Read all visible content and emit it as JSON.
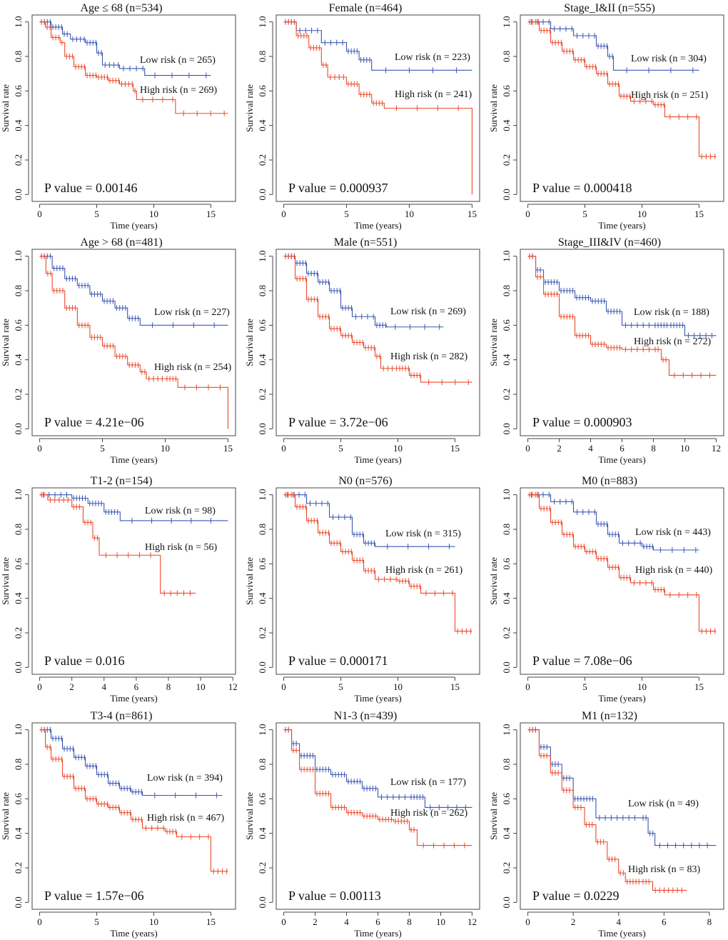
{
  "colors": {
    "low_risk": "#3b57b3",
    "high_risk": "#ec4a2c"
  },
  "chart_data": [
    {
      "type": "line",
      "title": "Age ≤ 68 (n=534)",
      "xlabel": "Time (years)",
      "ylabel": "Survival rate",
      "xlim": [
        0,
        16.5
      ],
      "ylim": [
        0,
        1
      ],
      "xticks": [
        0,
        5,
        10,
        15
      ],
      "yticks": [
        "0.0",
        "0.2",
        "0.4",
        "0.6",
        "0.8",
        "1.0"
      ],
      "p_value": "P value = 0.00146",
      "series": [
        {
          "name": "Low risk (n = 265)",
          "x": [
            0,
            1,
            2,
            2.7,
            4,
            5,
            5.5,
            7,
            9.2,
            15
          ],
          "y": [
            1,
            0.97,
            0.93,
            0.9,
            0.88,
            0.82,
            0.75,
            0.73,
            0.69,
            0.69
          ]
        },
        {
          "name": "High risk (n = 269)",
          "x": [
            0,
            0.5,
            1,
            1.8,
            2.2,
            3,
            4,
            5,
            6,
            7,
            8.2,
            8.5,
            11.9,
            16.5
          ],
          "y": [
            1,
            0.97,
            0.91,
            0.88,
            0.8,
            0.74,
            0.69,
            0.68,
            0.66,
            0.64,
            0.6,
            0.55,
            0.47,
            0.47
          ]
        }
      ]
    },
    {
      "type": "line",
      "title": "Female (n=464)",
      "xlabel": "Time (years)",
      "ylabel": "Survival rate",
      "xlim": [
        0,
        15
      ],
      "ylim": [
        0,
        1
      ],
      "xticks": [
        0,
        5,
        10,
        15
      ],
      "yticks": [
        "0.0",
        "0.2",
        "0.4",
        "0.6",
        "0.8",
        "1.0"
      ],
      "p_value": "P value = 0.000937",
      "series": [
        {
          "name": "Low risk (n = 223)",
          "x": [
            0,
            1,
            3,
            5,
            6,
            7,
            15
          ],
          "y": [
            1,
            0.95,
            0.88,
            0.83,
            0.78,
            0.72,
            0.72
          ]
        },
        {
          "name": "High risk (n = 241)",
          "x": [
            0,
            1,
            2,
            3,
            3.5,
            5,
            6,
            7,
            8,
            15,
            15
          ],
          "y": [
            1,
            0.92,
            0.85,
            0.75,
            0.68,
            0.64,
            0.58,
            0.53,
            0.5,
            0.5,
            0
          ]
        }
      ]
    },
    {
      "type": "line",
      "title": "Stage_I&II (n=555)",
      "xlabel": "Time (years)",
      "ylabel": "Survival rate",
      "xlim": [
        0,
        16.5
      ],
      "ylim": [
        0,
        1
      ],
      "xticks": [
        0,
        5,
        10,
        15
      ],
      "yticks": [
        "0.0",
        "0.2",
        "0.4",
        "0.6",
        "0.8",
        "1.0"
      ],
      "p_value": "P value = 0.000418",
      "series": [
        {
          "name": "Low risk (n = 304)",
          "x": [
            0,
            2,
            4,
            6,
            7,
            7.5,
            15
          ],
          "y": [
            1,
            0.96,
            0.92,
            0.86,
            0.8,
            0.72,
            0.72
          ]
        },
        {
          "name": "High risk (n = 251)",
          "x": [
            0,
            1,
            2,
            3,
            4,
            5,
            6,
            7,
            8,
            9,
            11,
            12,
            15,
            15,
            16.5
          ],
          "y": [
            1,
            0.95,
            0.88,
            0.83,
            0.78,
            0.74,
            0.7,
            0.64,
            0.57,
            0.54,
            0.52,
            0.45,
            0.45,
            0.22,
            0.22
          ]
        }
      ]
    },
    {
      "type": "line",
      "title": "Age > 68 (n=481)",
      "xlabel": "Time (years)",
      "ylabel": "Survival rate",
      "xlim": [
        0,
        15
      ],
      "ylim": [
        0,
        1
      ],
      "xticks": [
        0,
        5,
        10,
        15
      ],
      "yticks": [
        "0.0",
        "0.2",
        "0.4",
        "0.6",
        "0.8",
        "1.0"
      ],
      "p_value": "P value = 4.21e−06",
      "series": [
        {
          "name": "Low risk (n = 227)",
          "x": [
            0,
            1,
            2,
            3,
            4,
            5,
            6,
            7,
            8,
            15
          ],
          "y": [
            1,
            0.93,
            0.87,
            0.83,
            0.78,
            0.74,
            0.7,
            0.64,
            0.6,
            0.6
          ]
        },
        {
          "name": "High risk (n = 254)",
          "x": [
            0,
            0.5,
            1,
            2,
            3,
            4,
            5,
            6,
            7,
            8,
            8.5,
            10,
            11,
            15,
            15
          ],
          "y": [
            1,
            0.9,
            0.8,
            0.7,
            0.6,
            0.53,
            0.48,
            0.42,
            0.37,
            0.33,
            0.29,
            0.29,
            0.24,
            0.24,
            0
          ]
        }
      ]
    },
    {
      "type": "line",
      "title": "Male (n=551)",
      "xlabel": "Time (years)",
      "ylabel": "Survival rate",
      "xlim": [
        0,
        16.5
      ],
      "ylim": [
        0,
        1
      ],
      "xticks": [
        0,
        5,
        10,
        15
      ],
      "yticks": [
        "0.0",
        "0.2",
        "0.4",
        "0.6",
        "0.8",
        "1.0"
      ],
      "p_value": "P value = 3.72e−06",
      "series": [
        {
          "name": "Low risk (n = 269)",
          "x": [
            0,
            1,
            2,
            3,
            4,
            5,
            6,
            8,
            9,
            14
          ],
          "y": [
            1,
            0.96,
            0.9,
            0.85,
            0.8,
            0.7,
            0.65,
            0.6,
            0.59,
            0.59
          ]
        },
        {
          "name": "High risk (n = 282)",
          "x": [
            0,
            1,
            2,
            3,
            4,
            5,
            6,
            7,
            8,
            8.5,
            10,
            11,
            12,
            16.5
          ],
          "y": [
            1,
            0.87,
            0.75,
            0.65,
            0.58,
            0.54,
            0.5,
            0.47,
            0.42,
            0.35,
            0.35,
            0.31,
            0.27,
            0.27
          ]
        }
      ]
    },
    {
      "type": "line",
      "title": "Stage_III&IV (n=460)",
      "xlabel": "Time (years)",
      "ylabel": "Survival rate",
      "xlim": [
        0,
        12
      ],
      "ylim": [
        0,
        1
      ],
      "xticks": [
        0,
        2,
        4,
        6,
        8,
        10,
        12
      ],
      "yticks": [
        "0.0",
        "0.2",
        "0.4",
        "0.6",
        "0.8",
        "1.0"
      ],
      "p_value": "P value = 0.000903",
      "series": [
        {
          "name": "Low risk (n = 188)",
          "x": [
            0,
            0.5,
            1,
            2,
            3,
            4,
            5,
            6,
            8,
            9,
            10,
            12
          ],
          "y": [
            1,
            0.92,
            0.85,
            0.8,
            0.76,
            0.74,
            0.68,
            0.6,
            0.6,
            0.6,
            0.54,
            0.54
          ]
        },
        {
          "name": "High risk (n = 272)",
          "x": [
            0,
            0.5,
            1,
            2,
            3,
            4,
            5,
            6,
            8,
            8.5,
            9,
            12
          ],
          "y": [
            1,
            0.88,
            0.78,
            0.65,
            0.54,
            0.49,
            0.47,
            0.46,
            0.46,
            0.4,
            0.31,
            0.31
          ]
        }
      ]
    },
    {
      "type": "line",
      "title": "T1-2 (n=154)",
      "xlabel": "Time (years)",
      "ylabel": "Survival rate",
      "xlim": [
        0,
        11.7
      ],
      "ylim": [
        0,
        1
      ],
      "xticks": [
        0,
        2,
        4,
        6,
        8,
        10,
        12
      ],
      "yticks": [
        "0.0",
        "0.2",
        "0.4",
        "0.6",
        "0.8",
        "1.0"
      ],
      "p_value": "P value = 0.016",
      "series": [
        {
          "name": "Low risk (n = 98)",
          "x": [
            0,
            2,
            3,
            4,
            5,
            11.7
          ],
          "y": [
            1,
            0.98,
            0.95,
            0.9,
            0.85,
            0.85
          ]
        },
        {
          "name": "High risk (n = 56)",
          "x": [
            0,
            0.5,
            2,
            2.7,
            3.3,
            3.7,
            7.5,
            7.5,
            9.7
          ],
          "y": [
            1,
            0.97,
            0.93,
            0.84,
            0.75,
            0.65,
            0.65,
            0.43,
            0.43
          ]
        }
      ]
    },
    {
      "type": "line",
      "title": "N0 (n=576)",
      "xlabel": "Time (years)",
      "ylabel": "Survival rate",
      "xlim": [
        0,
        16.5
      ],
      "ylim": [
        0,
        1
      ],
      "xticks": [
        0,
        5,
        10,
        15
      ],
      "yticks": [
        "0.0",
        "0.2",
        "0.4",
        "0.6",
        "0.8",
        "1.0"
      ],
      "p_value": "P value = 0.000171",
      "series": [
        {
          "name": "Low risk (n = 315)",
          "x": [
            0,
            2,
            4,
            6,
            7,
            8,
            15
          ],
          "y": [
            1,
            0.95,
            0.87,
            0.77,
            0.72,
            0.7,
            0.7
          ]
        },
        {
          "name": "High risk (n = 261)",
          "x": [
            0,
            1,
            2,
            3,
            4,
            5,
            6,
            7,
            8,
            10,
            11,
            12,
            15,
            15,
            16.5
          ],
          "y": [
            1,
            0.93,
            0.85,
            0.78,
            0.72,
            0.67,
            0.62,
            0.56,
            0.51,
            0.5,
            0.47,
            0.43,
            0.43,
            0.21,
            0.21
          ]
        }
      ]
    },
    {
      "type": "line",
      "title": "M0 (n=883)",
      "xlabel": "Time (years)",
      "ylabel": "Survival rate",
      "xlim": [
        0,
        16.5
      ],
      "ylim": [
        0,
        1
      ],
      "xticks": [
        0,
        5,
        10,
        15
      ],
      "yticks": [
        "0.0",
        "0.2",
        "0.4",
        "0.6",
        "0.8",
        "1.0"
      ],
      "p_value": "P value = 7.08e−06",
      "series": [
        {
          "name": "Low risk (n = 443)",
          "x": [
            0,
            2,
            4,
            6,
            7,
            8,
            10,
            11,
            15
          ],
          "y": [
            1,
            0.96,
            0.9,
            0.83,
            0.77,
            0.72,
            0.7,
            0.68,
            0.68
          ]
        },
        {
          "name": "High risk (n = 440)",
          "x": [
            0,
            1,
            2,
            3,
            4,
            5,
            6,
            7,
            8,
            9,
            11,
            12,
            15,
            15,
            16.5
          ],
          "y": [
            1,
            0.92,
            0.84,
            0.77,
            0.7,
            0.67,
            0.63,
            0.58,
            0.52,
            0.49,
            0.45,
            0.42,
            0.42,
            0.21,
            0.21
          ]
        }
      ]
    },
    {
      "type": "line",
      "title": "T3-4 (n=861)",
      "xlabel": "Time (years)",
      "ylabel": "Survival rate",
      "xlim": [
        0,
        16.5
      ],
      "ylim": [
        0,
        1
      ],
      "xticks": [
        0,
        5,
        10,
        15
      ],
      "yticks": [
        "0.0",
        "0.2",
        "0.4",
        "0.6",
        "0.8",
        "1.0"
      ],
      "p_value": "P value = 1.57e−06",
      "series": [
        {
          "name": "Low risk (n = 394)",
          "x": [
            0,
            1,
            2,
            3,
            4,
            5,
            6,
            7,
            8,
            9,
            16
          ],
          "y": [
            1,
            0.95,
            0.89,
            0.84,
            0.79,
            0.74,
            0.69,
            0.66,
            0.64,
            0.62,
            0.62
          ]
        },
        {
          "name": "High risk (n = 467)",
          "x": [
            0,
            0.5,
            1,
            2,
            3,
            4,
            5,
            6,
            7,
            8,
            9,
            11,
            12,
            15,
            15,
            16.5
          ],
          "y": [
            1,
            0.9,
            0.83,
            0.73,
            0.66,
            0.6,
            0.57,
            0.55,
            0.52,
            0.48,
            0.43,
            0.41,
            0.38,
            0.36,
            0.18,
            0.18
          ]
        }
      ]
    },
    {
      "type": "line",
      "title": "N1-3 (n=439)",
      "xlabel": "Time (years)",
      "ylabel": "Survival rate",
      "xlim": [
        0,
        12
      ],
      "ylim": [
        0,
        1
      ],
      "xticks": [
        0,
        2,
        4,
        6,
        8,
        10,
        12
      ],
      "yticks": [
        "0.0",
        "0.2",
        "0.4",
        "0.6",
        "0.8",
        "1.0"
      ],
      "p_value": "P value = 0.00113",
      "series": [
        {
          "name": "Low risk (n = 177)",
          "x": [
            0,
            0.5,
            1,
            2,
            3,
            4,
            5,
            6,
            8,
            9,
            12
          ],
          "y": [
            1,
            0.92,
            0.85,
            0.77,
            0.74,
            0.7,
            0.66,
            0.61,
            0.61,
            0.55,
            0.55
          ]
        },
        {
          "name": "High risk (n = 262)",
          "x": [
            0,
            0.5,
            1,
            2,
            3,
            4,
            5,
            6,
            7,
            8,
            8.5,
            12
          ],
          "y": [
            1,
            0.88,
            0.77,
            0.63,
            0.55,
            0.52,
            0.5,
            0.48,
            0.47,
            0.42,
            0.33,
            0.33
          ]
        }
      ]
    },
    {
      "type": "line",
      "title": "M1 (n=132)",
      "xlabel": "Time (years)",
      "ylabel": "Survival rate",
      "xlim": [
        0,
        8.3
      ],
      "ylim": [
        0,
        1
      ],
      "xticks": [
        0,
        2,
        4,
        6,
        8
      ],
      "yticks": [
        "0.0",
        "0.2",
        "0.4",
        "0.6",
        "0.8",
        "1.0"
      ],
      "p_value": "P value = 0.0229",
      "series": [
        {
          "name": "Low risk (n = 49)",
          "x": [
            0,
            0.5,
            1,
            1.5,
            2,
            3,
            5,
            5.3,
            5.6,
            8.3
          ],
          "y": [
            1,
            0.9,
            0.8,
            0.72,
            0.6,
            0.49,
            0.49,
            0.4,
            0.33,
            0.33
          ]
        },
        {
          "name": "High risk (n = 83)",
          "x": [
            0,
            0.5,
            1,
            1.5,
            2,
            2.5,
            3,
            3.5,
            4,
            4.3,
            5,
            5.5,
            7
          ],
          "y": [
            1,
            0.85,
            0.75,
            0.65,
            0.55,
            0.45,
            0.35,
            0.25,
            0.17,
            0.12,
            0.12,
            0.07,
            0.07
          ]
        }
      ]
    }
  ]
}
